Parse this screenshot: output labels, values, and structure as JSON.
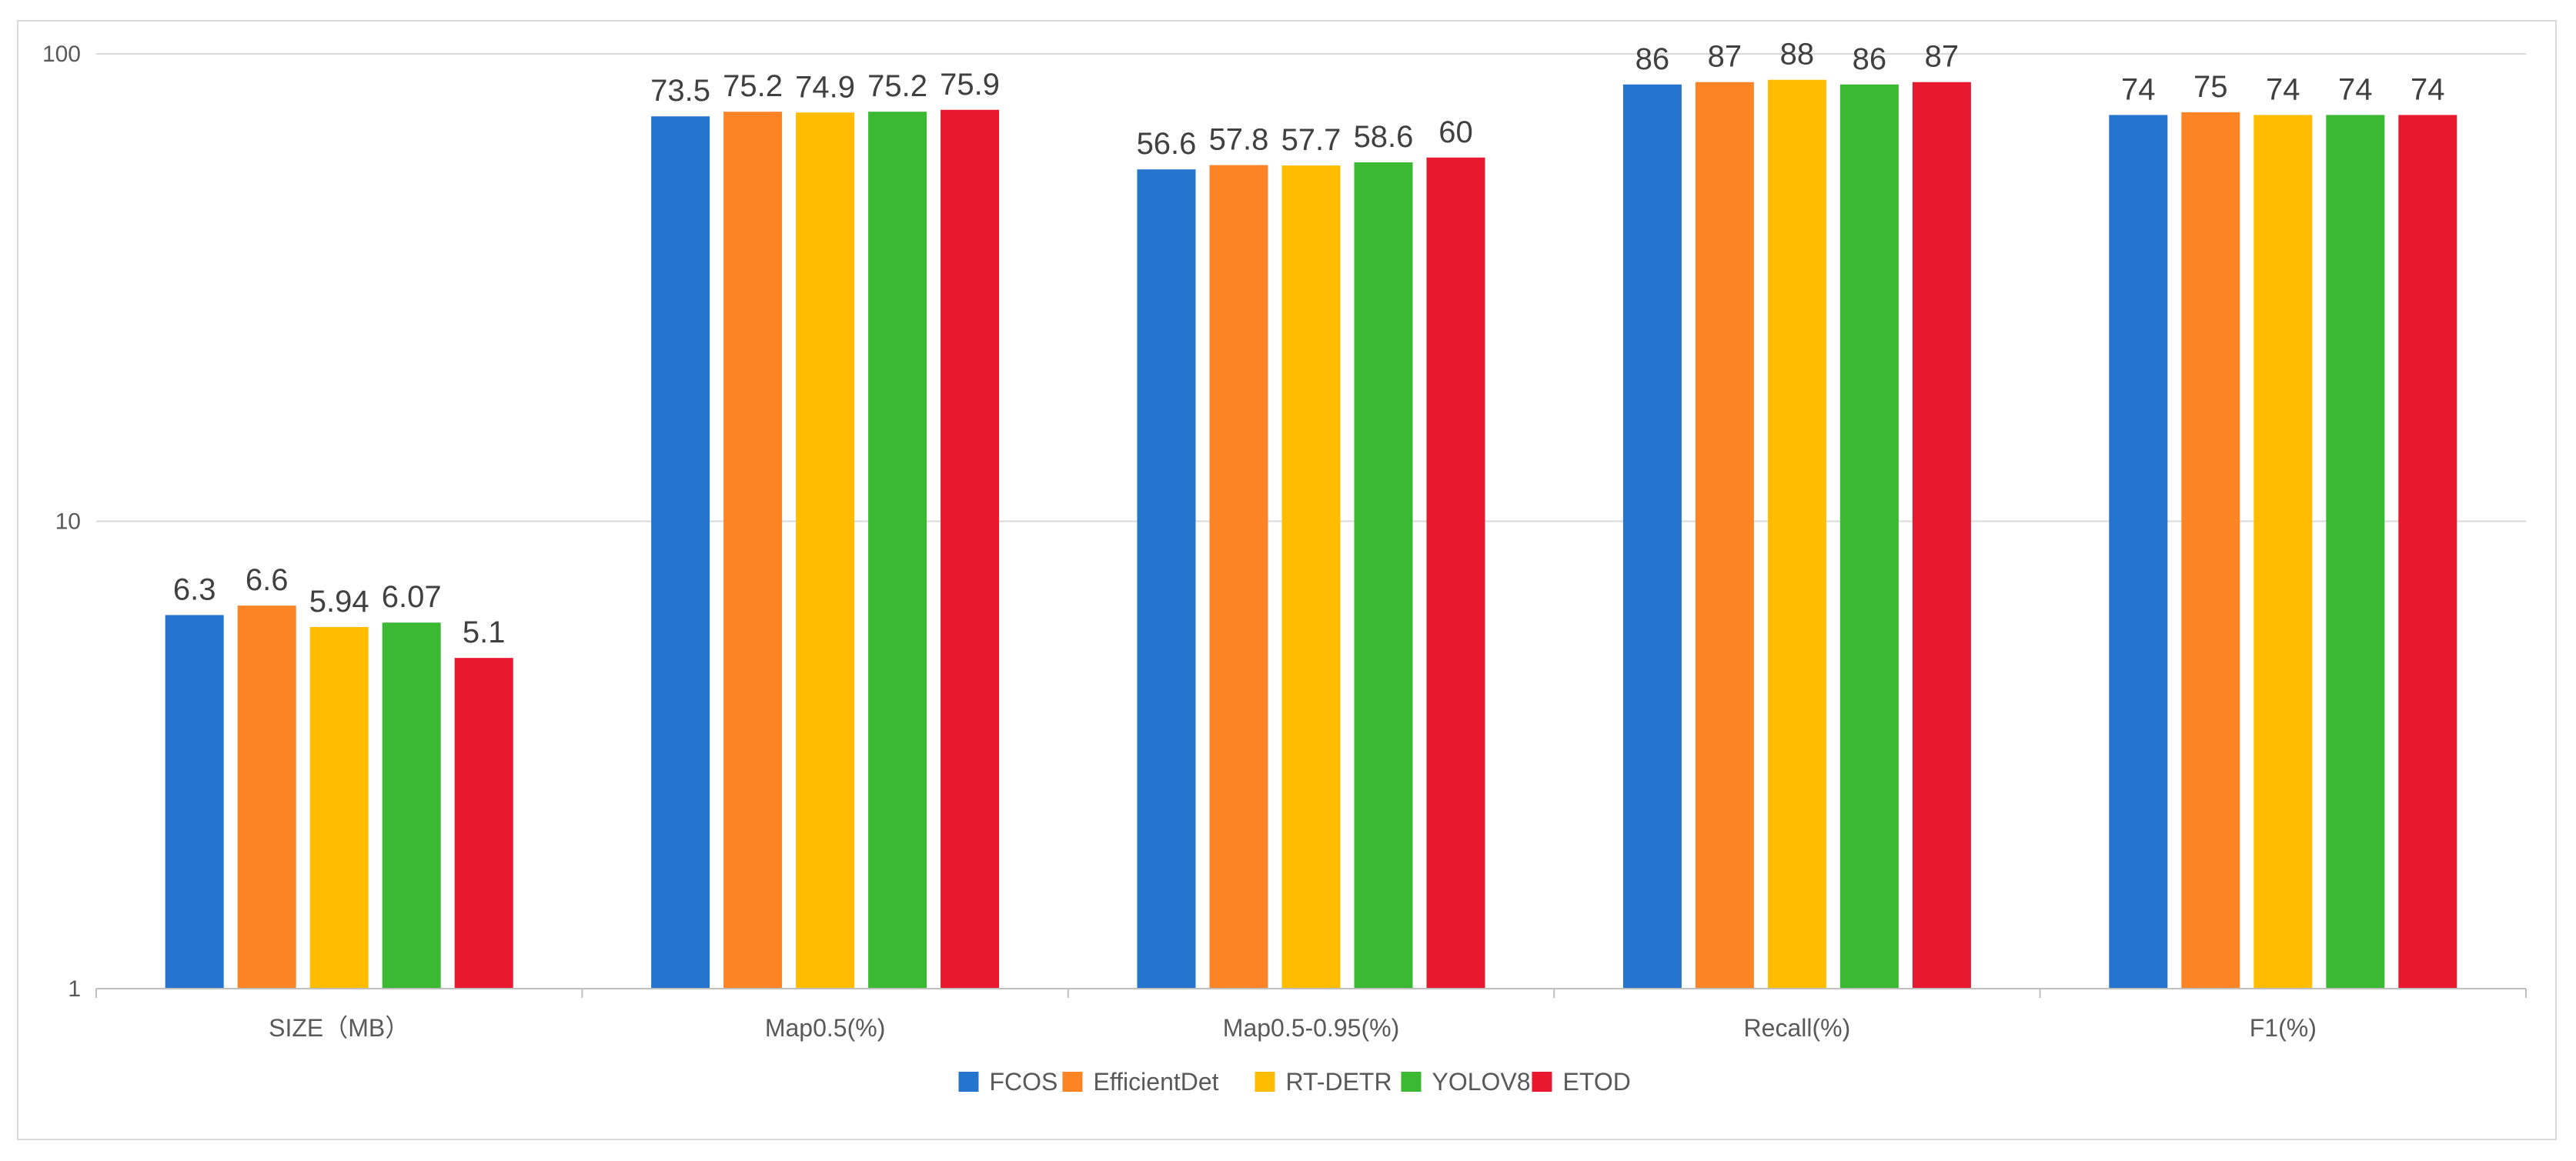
{
  "chart_data": {
    "type": "bar",
    "yscale": "log",
    "ylim": [
      1,
      100
    ],
    "yticks": [
      1,
      10,
      100
    ],
    "ytick_labels": [
      "1",
      "10",
      "100"
    ],
    "categories": [
      "SIZE（MB）",
      "Map0.5(%)",
      "Map0.5-0.95(%)",
      "Recall(%)",
      "F1(%)"
    ],
    "series": [
      {
        "name": "FCOS",
        "color": "#2575CF",
        "values": [
          6.3,
          73.5,
          56.6,
          86,
          74
        ],
        "labels": [
          "6.3",
          "73.5",
          "56.6",
          "86",
          "74"
        ]
      },
      {
        "name": "EfficientDet",
        "color": "#FC8425",
        "values": [
          6.6,
          75.2,
          57.8,
          87,
          75
        ],
        "labels": [
          "6.6",
          "75.2",
          "57.8",
          "87",
          "75"
        ]
      },
      {
        "name": "RT-DETR",
        "color": "#FFBC00",
        "values": [
          5.94,
          74.9,
          57.7,
          88,
          74
        ],
        "labels": [
          "5.94",
          "74.9",
          "57.7",
          "88",
          "74"
        ]
      },
      {
        "name": "YOLOV8",
        "color": "#3BB932",
        "values": [
          6.07,
          75.2,
          58.6,
          86,
          74
        ],
        "labels": [
          "6.07",
          "75.2",
          "58.6",
          "86",
          "74"
        ]
      },
      {
        "name": "ETOD",
        "color": "#E8182E",
        "values": [
          5.1,
          75.9,
          60,
          87,
          74
        ],
        "labels": [
          "5.1",
          "75.9",
          "60",
          "87",
          "74"
        ]
      }
    ],
    "legend": "bottom-center",
    "grid": true
  }
}
